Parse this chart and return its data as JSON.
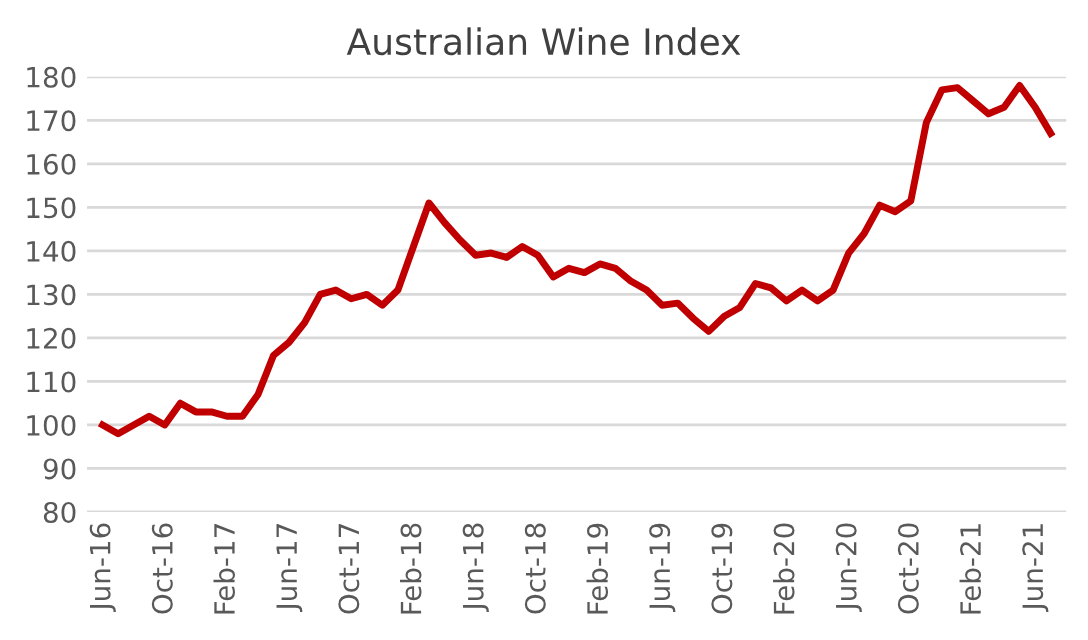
{
  "chart_data": {
    "type": "line",
    "title": "Australian Wine Index",
    "categories": [
      "Jun-16",
      null,
      null,
      null,
      "Oct-16",
      null,
      null,
      null,
      "Feb-17",
      null,
      null,
      null,
      "Jun-17",
      null,
      null,
      null,
      "Oct-17",
      null,
      null,
      null,
      "Feb-18",
      null,
      null,
      null,
      "Jun-18",
      null,
      null,
      null,
      "Oct-18",
      null,
      null,
      null,
      "Feb-19",
      null,
      null,
      null,
      "Jun-19",
      null,
      null,
      null,
      "Oct-19",
      null,
      null,
      null,
      "Feb-20",
      null,
      null,
      null,
      "Jun-20",
      null,
      null,
      null,
      "Oct-20",
      null,
      null,
      null,
      "Feb-21",
      null,
      null,
      null,
      "Jun-21",
      null
    ],
    "series": [
      {
        "color": "#c00000",
        "values": [
          100,
          98,
          100,
          102,
          100,
          105,
          103,
          103,
          102,
          102,
          107,
          116,
          119,
          123.5,
          130,
          131,
          129,
          130,
          127.5,
          131,
          141,
          151,
          146.5,
          142.5,
          139,
          139.5,
          138.5,
          141,
          139,
          134,
          136,
          135,
          137,
          136,
          133,
          131,
          127.5,
          128,
          124.5,
          121.5,
          125,
          127,
          132.5,
          131.5,
          128.5,
          131,
          128.5,
          131,
          139.5,
          144,
          150.5,
          149,
          151.5,
          169.5,
          177,
          177.5,
          174.5,
          171.5,
          173,
          178,
          173,
          167
        ]
      }
    ],
    "ylim": [
      80,
      180
    ],
    "yticks": [
      80,
      90,
      100,
      110,
      120,
      130,
      140,
      150,
      160,
      170,
      180
    ],
    "grid": "y",
    "legend": false,
    "marker": "none",
    "line_style": "solid"
  }
}
